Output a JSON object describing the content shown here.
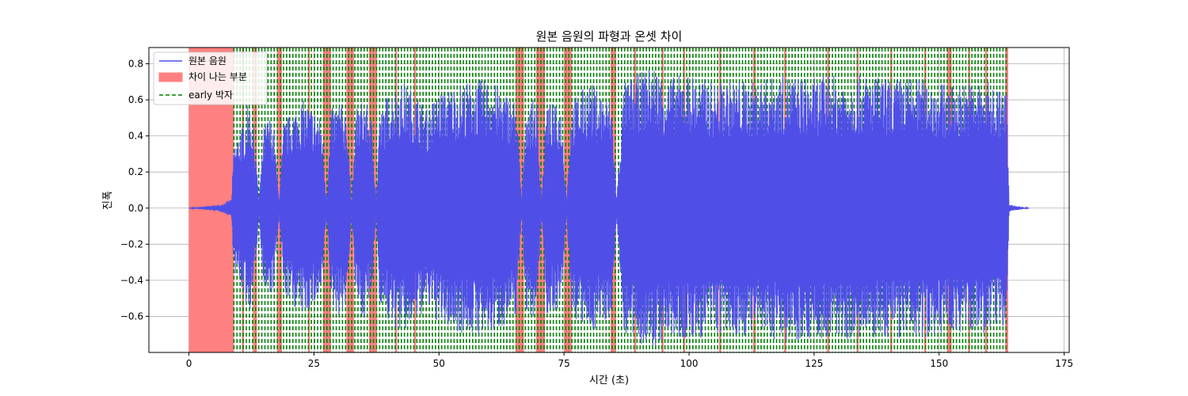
{
  "chart_data": {
    "type": "line",
    "title": "원본 음원의 파형과 온셋 차이",
    "xlabel": "시간 (초)",
    "ylabel": "진폭",
    "xlim": [
      -8,
      176
    ],
    "ylim": [
      -0.8,
      0.89
    ],
    "xticks": [
      0,
      25,
      50,
      75,
      100,
      125,
      150,
      175
    ],
    "yticks": [
      -0.6,
      -0.4,
      -0.2,
      0.0,
      0.2,
      0.4,
      0.6,
      0.8
    ],
    "ytick_labels": [
      "−0.6",
      "−0.4",
      "−0.2",
      "0.0",
      "0.2",
      "0.4",
      "0.6",
      "0.8"
    ],
    "grid": true,
    "legend": {
      "placement": "top-left",
      "entries": [
        {
          "label": "원본 음원",
          "kind": "line",
          "color": "#4f4fe8"
        },
        {
          "label": "차이 나는 부분",
          "kind": "patch",
          "color": "#ff8080"
        },
        {
          "label": "early 박자",
          "kind": "dashed",
          "color": "#008000"
        }
      ]
    },
    "waveform": {
      "name": "원본 음원",
      "color": "#4f4fe8",
      "x_range": [
        0,
        168
      ],
      "envelope": [
        [
          0,
          0.0
        ],
        [
          6.3,
          0.02
        ],
        [
          8.5,
          0.05
        ],
        [
          9.0,
          0.35
        ],
        [
          10,
          0.42
        ],
        [
          11,
          0.48
        ],
        [
          12,
          0.6
        ],
        [
          13,
          0.45
        ],
        [
          14,
          0.05
        ],
        [
          15,
          0.45
        ],
        [
          16,
          0.52
        ],
        [
          17,
          0.45
        ],
        [
          18,
          0.05
        ],
        [
          19,
          0.48
        ],
        [
          21,
          0.55
        ],
        [
          23,
          0.6
        ],
        [
          25,
          0.55
        ],
        [
          26.5,
          0.5
        ],
        [
          27.5,
          0.05
        ],
        [
          28.5,
          0.55
        ],
        [
          30,
          0.6
        ],
        [
          31.5,
          0.55
        ],
        [
          32.5,
          0.05
        ],
        [
          33.5,
          0.55
        ],
        [
          35,
          0.62
        ],
        [
          36.5,
          0.5
        ],
        [
          37.5,
          0.05
        ],
        [
          38,
          0.5
        ],
        [
          40,
          0.65
        ],
        [
          43,
          0.7
        ],
        [
          46,
          0.62
        ],
        [
          47.5,
          0.55
        ],
        [
          50,
          0.65
        ],
        [
          55,
          0.7
        ],
        [
          60,
          0.72
        ],
        [
          63,
          0.65
        ],
        [
          65.5,
          0.6
        ],
        [
          66.5,
          0.05
        ],
        [
          67.5,
          0.6
        ],
        [
          69.5,
          0.6
        ],
        [
          70.5,
          0.05
        ],
        [
          71.5,
          0.6
        ],
        [
          74.5,
          0.55
        ],
        [
          75.5,
          0.05
        ],
        [
          76.5,
          0.6
        ],
        [
          80,
          0.7
        ],
        [
          84.5,
          0.6
        ],
        [
          85.5,
          0.05
        ],
        [
          87,
          0.7
        ],
        [
          90,
          0.75
        ],
        [
          93,
          0.8
        ],
        [
          95,
          0.72
        ],
        [
          100,
          0.75
        ],
        [
          105,
          0.7
        ],
        [
          110,
          0.72
        ],
        [
          112.5,
          0.7
        ],
        [
          115,
          0.72
        ],
        [
          120,
          0.74
        ],
        [
          125,
          0.72
        ],
        [
          128,
          0.75
        ],
        [
          130,
          0.72
        ],
        [
          135,
          0.74
        ],
        [
          140,
          0.72
        ],
        [
          145,
          0.73
        ],
        [
          150,
          0.7
        ],
        [
          153,
          0.68
        ],
        [
          155,
          0.7
        ],
        [
          160,
          0.7
        ],
        [
          163.5,
          0.65
        ],
        [
          164,
          0.02
        ],
        [
          168,
          0.0
        ]
      ]
    },
    "diff_regions": {
      "name": "차이 나는 부분",
      "color": "#ff8080",
      "spans": [
        [
          0,
          9.0
        ],
        [
          10.6,
          11.0
        ],
        [
          12.8,
          13.6
        ],
        [
          17.6,
          18.6
        ],
        [
          23.8,
          24.2
        ],
        [
          26.8,
          28.4
        ],
        [
          31.5,
          33.0
        ],
        [
          36.0,
          37.6
        ],
        [
          41.2,
          41.6
        ],
        [
          45.0,
          45.4
        ],
        [
          65.3,
          67.0
        ],
        [
          69.4,
          71.2
        ],
        [
          75.0,
          76.5
        ],
        [
          84.3,
          85.4
        ],
        [
          89.0,
          89.4
        ],
        [
          94.5,
          94.9
        ],
        [
          98.8,
          99.2
        ],
        [
          106.0,
          106.4
        ],
        [
          112.8,
          113.3
        ],
        [
          119.0,
          119.4
        ],
        [
          127.6,
          128.0
        ],
        [
          133.5,
          133.9
        ],
        [
          140.2,
          140.6
        ],
        [
          147.0,
          147.4
        ],
        [
          151.6,
          152.5
        ],
        [
          155.8,
          156.2
        ],
        [
          159.2,
          159.6
        ],
        [
          163.2,
          163.8
        ]
      ]
    },
    "early_beats": {
      "name": "early 박자",
      "color": "#008000",
      "start": 9.0,
      "end": 163.8,
      "step": 0.62
    }
  }
}
